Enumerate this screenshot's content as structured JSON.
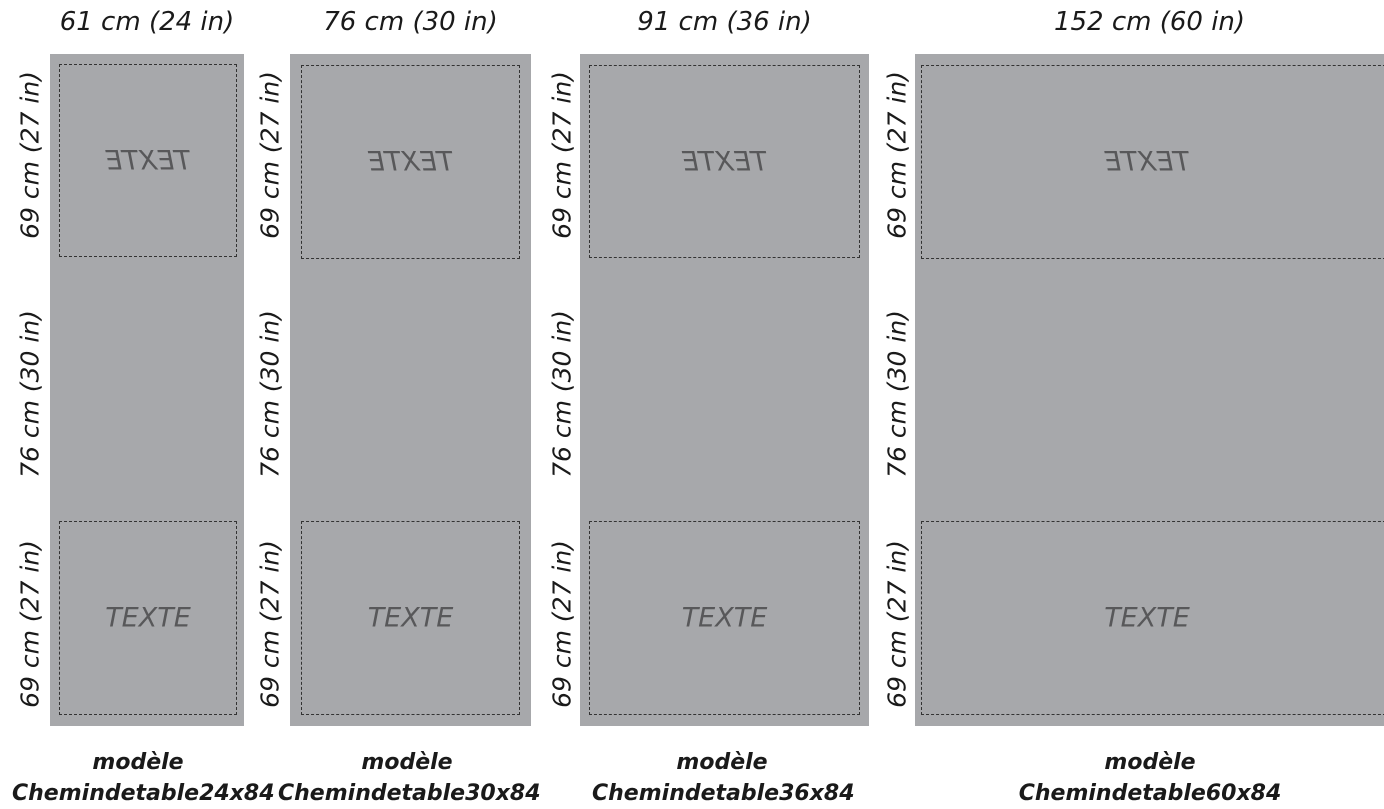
{
  "runners": [
    {
      "width_label": "61 cm (24 in)",
      "top_length": "69 cm (27 in)",
      "middle_length": "76 cm (30 in)",
      "bottom_length": "69 cm (27 in)",
      "top_text": "TEXTE",
      "bottom_text": "TEXTE",
      "model_line1": "modèle",
      "model_line2": "Chemindetable24x84"
    },
    {
      "width_label": "76 cm (30 in)",
      "top_length": "69 cm (27 in)",
      "middle_length": "76 cm (30 in)",
      "bottom_length": "69 cm (27 in)",
      "top_text": "TEXTE",
      "bottom_text": "TEXTE",
      "model_line1": "modèle",
      "model_line2": "Chemindetable30x84"
    },
    {
      "width_label": "91 cm (36 in)",
      "top_length": "69 cm (27 in)",
      "middle_length": "76 cm (30 in)",
      "bottom_length": "69 cm (27 in)",
      "top_text": "TEXTE",
      "bottom_text": "TEXTE",
      "model_line1": "modèle",
      "model_line2": "Chemindetable36x84"
    },
    {
      "width_label": "152 cm (60 in)",
      "top_length": "69 cm (27 in)",
      "middle_length": "76 cm (30 in)",
      "bottom_length": "69 cm (27 in)",
      "top_text": "TEXTE",
      "bottom_text": "TEXTE",
      "model_line1": "modèle",
      "model_line2": "Chemindetable60x84"
    }
  ],
  "colors": {
    "panel": "#a7a8ab",
    "zone_text": "#58585a",
    "dashed_line": "#333333",
    "label_text": "#1a1a1a"
  }
}
